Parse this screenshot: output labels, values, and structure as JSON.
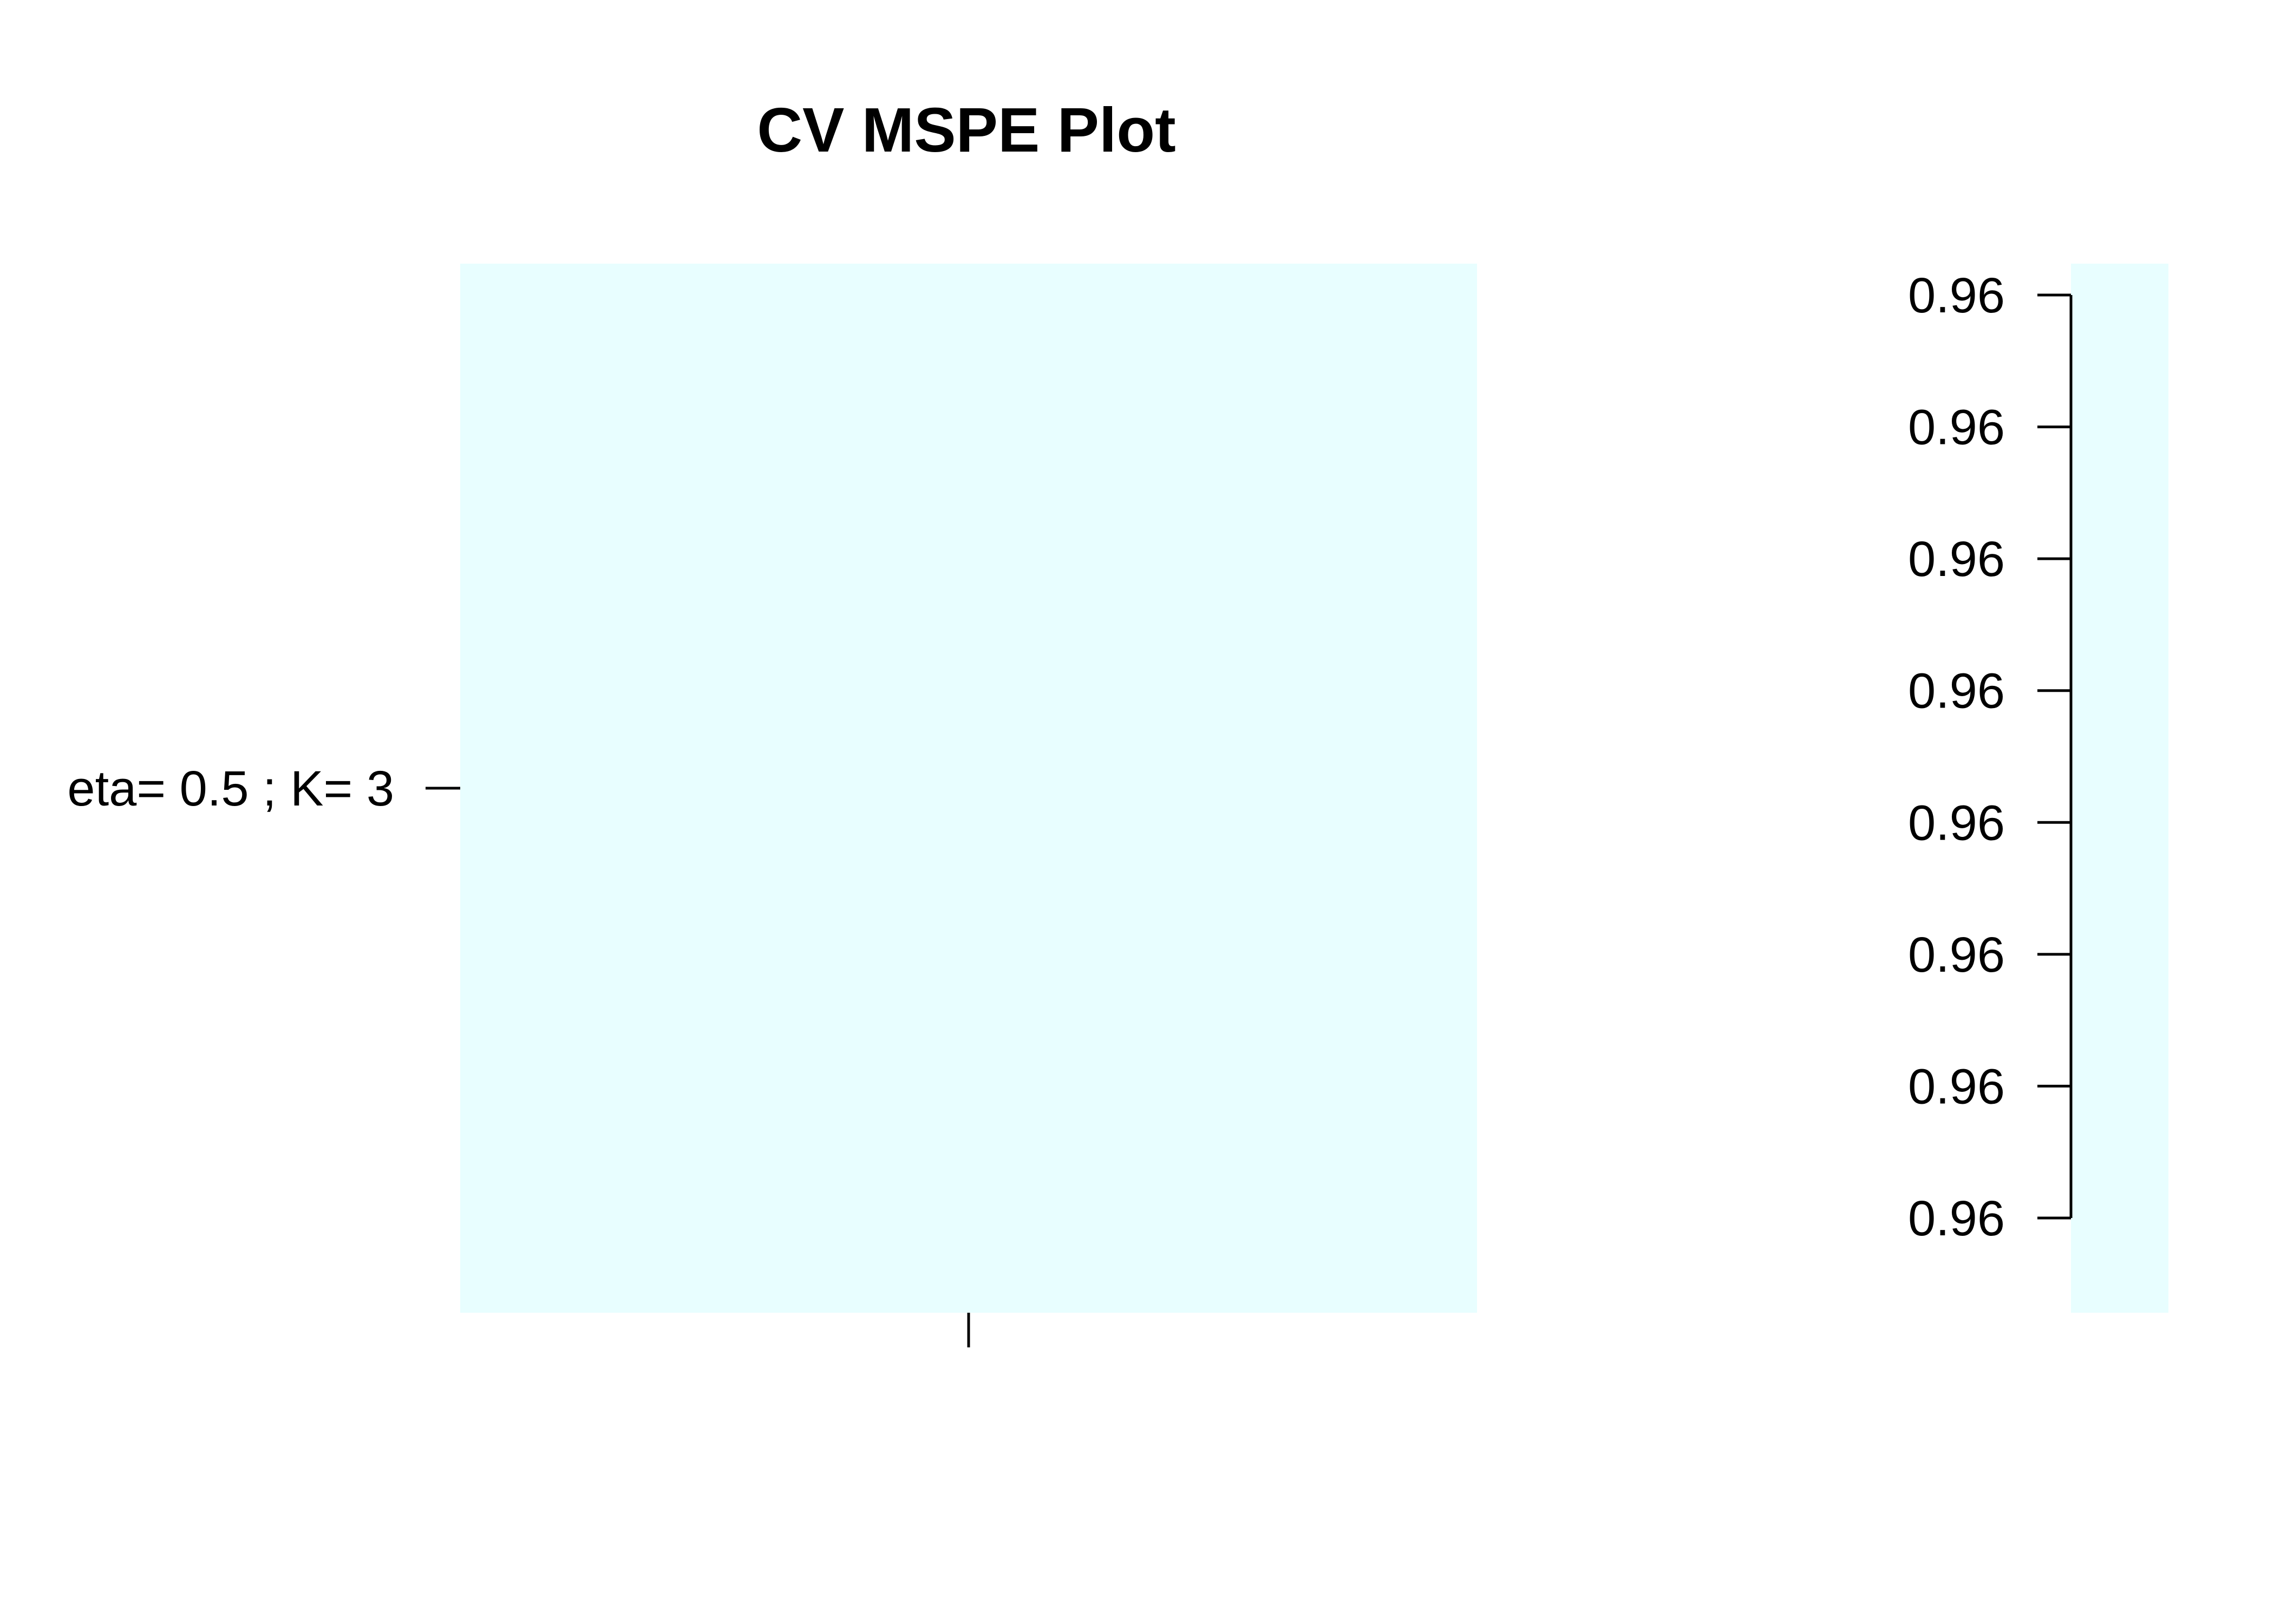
{
  "chart_data": {
    "type": "heatmap",
    "title": "CV MSPE Plot",
    "xlabel": "",
    "ylabel": "",
    "rows": [
      "eta= 0.5 ; K= 3"
    ],
    "columns": [
      ""
    ],
    "values": [
      [
        0.96
      ]
    ],
    "cell_color": "#e8feff",
    "legend": {
      "placement": "right",
      "tick_labels": [
        "0.96",
        "0.96",
        "0.96",
        "0.96",
        "0.96",
        "0.96",
        "0.96",
        "0.96"
      ],
      "color": "#e8feff"
    },
    "grid": false
  }
}
